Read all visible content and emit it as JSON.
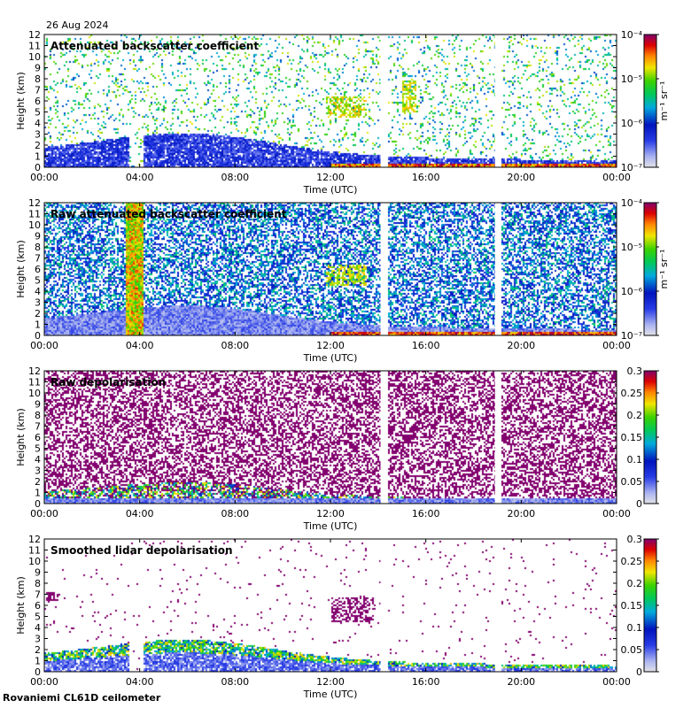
{
  "date": "26 Aug 2024",
  "footer": "Rovaniemi CL61D ceilometer",
  "chart_data": [
    {
      "type": "heatmap",
      "title": "Attenuated backscatter coefficient",
      "xlabel": "Time (UTC)",
      "ylabel": "Height (km)",
      "xticks": [
        "00:00",
        "04:00",
        "08:00",
        "12:00",
        "16:00",
        "20:00",
        "00:00"
      ],
      "yticks": [
        "0",
        "1",
        "2",
        "3",
        "4",
        "5",
        "6",
        "7",
        "8",
        "9",
        "10",
        "11",
        "12"
      ],
      "ylim": [
        0,
        12
      ],
      "xlim_hours": [
        0,
        24
      ],
      "data_gaps_hours": [
        [
          14.1,
          14.4
        ],
        [
          18.9,
          19.15
        ]
      ],
      "colorbar": {
        "scale": "log",
        "ticks": [
          "10⁻⁴",
          "10⁻⁵",
          "10⁻⁶",
          "10⁻⁷"
        ],
        "units": "m⁻¹ sr⁻¹"
      }
    },
    {
      "type": "heatmap",
      "title": "Raw attenuated backscatter coefficient",
      "xlabel": "Time (UTC)",
      "ylabel": "Height (km)",
      "xticks": [
        "00:00",
        "04:00",
        "08:00",
        "12:00",
        "16:00",
        "20:00",
        "00:00"
      ],
      "yticks": [
        "0",
        "1",
        "2",
        "3",
        "4",
        "5",
        "6",
        "7",
        "8",
        "9",
        "10",
        "11",
        "12"
      ],
      "ylim": [
        0,
        12
      ],
      "xlim_hours": [
        0,
        24
      ],
      "data_gaps_hours": [
        [
          14.1,
          14.4
        ],
        [
          18.9,
          19.15
        ]
      ],
      "colorbar": {
        "scale": "log",
        "ticks": [
          "10⁻⁴",
          "10⁻⁵",
          "10⁻⁶",
          "10⁻⁷"
        ],
        "units": "m⁻¹ sr⁻¹"
      }
    },
    {
      "type": "heatmap",
      "title": "Raw depolarisation",
      "xlabel": "Time (UTC)",
      "ylabel": "Height (km)",
      "xticks": [
        "00:00",
        "04:00",
        "08:00",
        "12:00",
        "16:00",
        "20:00",
        "00:00"
      ],
      "yticks": [
        "0",
        "1",
        "2",
        "3",
        "4",
        "5",
        "6",
        "7",
        "8",
        "9",
        "10",
        "11",
        "12"
      ],
      "ylim": [
        0,
        12
      ],
      "xlim_hours": [
        0,
        24
      ],
      "data_gaps_hours": [
        [
          14.1,
          14.4
        ],
        [
          18.9,
          19.15
        ]
      ],
      "colorbar": {
        "scale": "linear",
        "ticks": [
          "0.3",
          "0.25",
          "0.2",
          "0.15",
          "0.1",
          "0.05",
          "0"
        ],
        "range": [
          0,
          0.3
        ]
      }
    },
    {
      "type": "heatmap",
      "title": "Smoothed lidar depolarisation",
      "xlabel": "Time (UTC)",
      "ylabel": "Height (km)",
      "xticks": [
        "00:00",
        "04:00",
        "08:00",
        "12:00",
        "16:00",
        "20:00",
        "00:00"
      ],
      "yticks": [
        "0",
        "1",
        "2",
        "3",
        "4",
        "5",
        "6",
        "7",
        "8",
        "9",
        "10",
        "11",
        "12"
      ],
      "ylim": [
        0,
        12
      ],
      "xlim_hours": [
        0,
        24
      ],
      "data_gaps_hours": [
        [
          14.1,
          14.4
        ],
        [
          18.9,
          19.15
        ]
      ],
      "colorbar": {
        "scale": "linear",
        "ticks": [
          "0.3",
          "0.25",
          "0.2",
          "0.15",
          "0.1",
          "0.05",
          "0"
        ],
        "range": [
          0,
          0.3
        ]
      }
    }
  ]
}
